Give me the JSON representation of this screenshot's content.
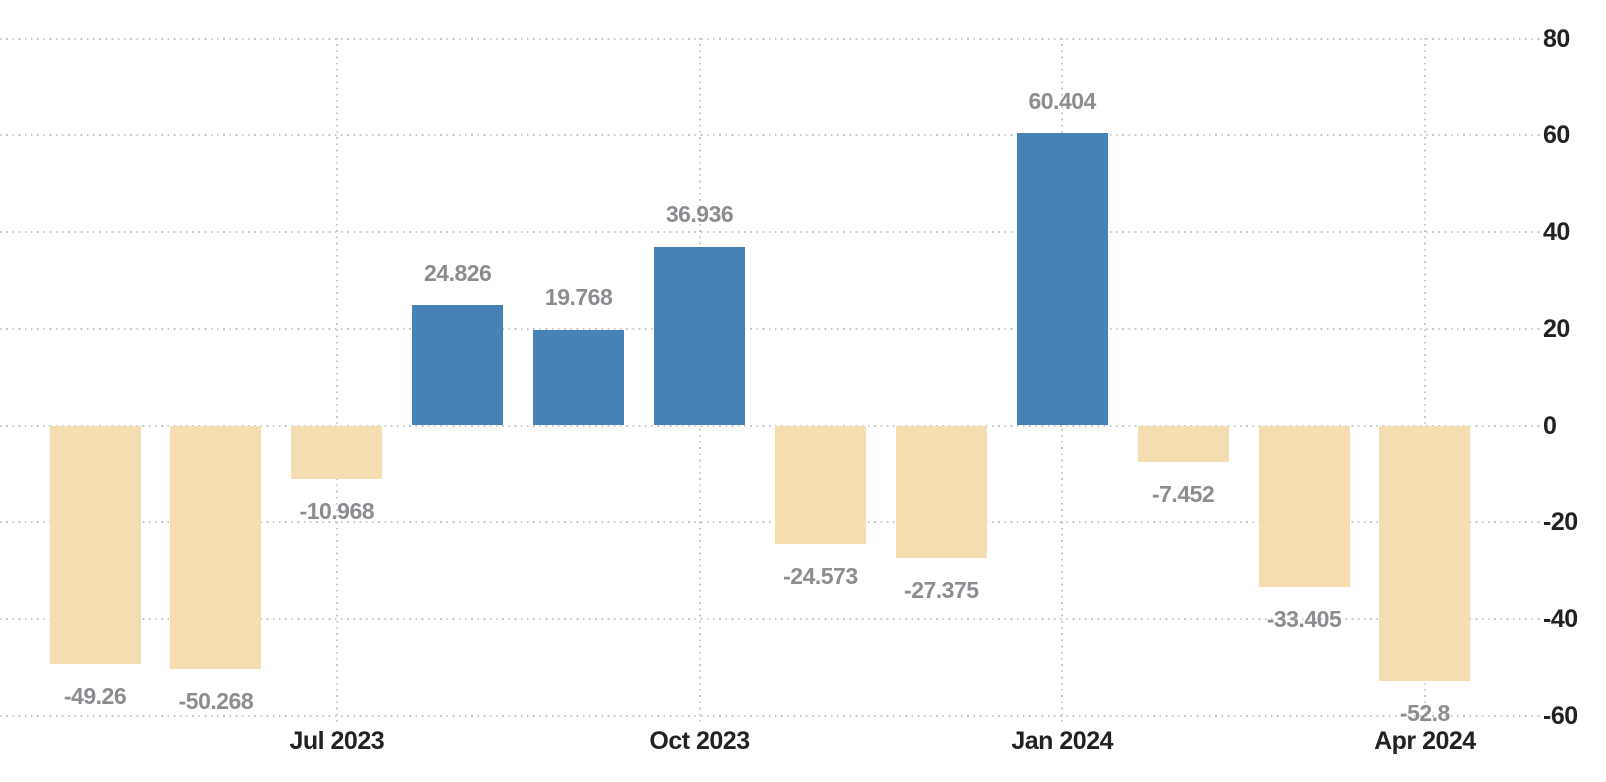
{
  "chart_data": {
    "type": "bar",
    "title": "",
    "xlabel": "",
    "ylabel": "",
    "values": [
      -49.26,
      -50.268,
      -10.968,
      24.826,
      19.768,
      36.936,
      -24.573,
      -27.375,
      60.404,
      -7.452,
      -33.405,
      -52.8
    ],
    "value_labels": [
      "-49.26",
      "-50.268",
      "-10.968",
      "24.826",
      "19.768",
      "36.936",
      "-24.573",
      "-27.375",
      "60.404",
      "-7.452",
      "-33.405",
      "-52.8"
    ],
    "x_ticks": [
      {
        "label": "Jul 2023",
        "bar_index": 2
      },
      {
        "label": "Oct 2023",
        "bar_index": 5
      },
      {
        "label": "Jan 2024",
        "bar_index": 8
      },
      {
        "label": "Apr 2024",
        "bar_index": 11
      }
    ],
    "y_ticks": [
      80,
      60,
      40,
      20,
      0,
      -20,
      -40,
      -60
    ],
    "y_tick_labels": [
      "80",
      "60",
      "40",
      "20",
      "0",
      "-20",
      "-40",
      "-60"
    ],
    "ylim": [
      -75,
      88
    ],
    "y_axis_side": "right",
    "grid": "dotted",
    "legend": "none",
    "colors": {
      "positive_bar": "#4782b4",
      "negative_bar": "#f4ddb1",
      "grid": "#c8c8c8",
      "axis_label": "#222222",
      "value_label": "#8b8d91",
      "background": "#ffffff"
    }
  }
}
